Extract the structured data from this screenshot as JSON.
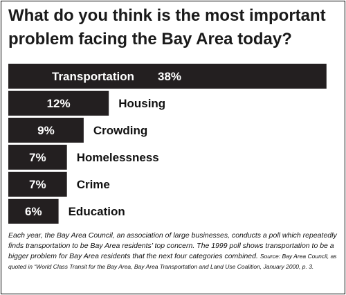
{
  "chart_data": {
    "type": "bar",
    "orientation": "horizontal",
    "title": "What do you think is the most important problem facing the Bay Area today?",
    "categories": [
      "Transportation",
      "Housing",
      "Crowding",
      "Homelessness",
      "Crime",
      "Education"
    ],
    "values": [
      38,
      12,
      9,
      7,
      7,
      6
    ],
    "value_labels": [
      "38%",
      "12%",
      "9%",
      "7%",
      "7%",
      "6%"
    ],
    "xlim": [
      0,
      40
    ],
    "grid": false,
    "legend": "none",
    "bar_color": "#231f20"
  },
  "caption": {
    "body": "Each year, the Bay Area Council, an association of large businesses, conducts a poll which repeatedly finds transportation to be Bay Area residents’ top concern.  The 1999 poll shows transportation to be a bigger problem for Bay Area residents that the next four categories combined.",
    "source": "Source: Bay Area Council, as quoted in “World Class Transit for the Bay Area, Bay Area Transportation and Land Use Coalition, January 2000, p. 3."
  }
}
